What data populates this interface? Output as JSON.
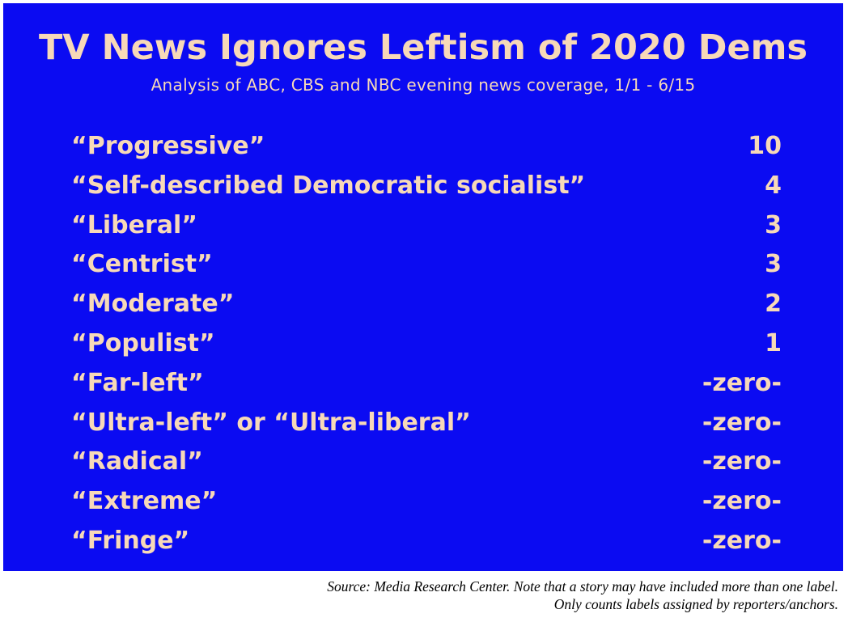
{
  "chart_data": {
    "type": "table",
    "title": "TV News Ignores Leftism of 2020 Dems",
    "subtitle": "Analysis of ABC, CBS and NBC evening news coverage, 1/1 - 6/15",
    "rows": [
      {
        "label": "“Progressive”",
        "value": "10"
      },
      {
        "label": "“Self-described Democratic socialist”",
        "value": "4"
      },
      {
        "label": "“Liberal”",
        "value": "3"
      },
      {
        "label": "“Centrist”",
        "value": "3"
      },
      {
        "label": "“Moderate”",
        "value": "2"
      },
      {
        "label": "“Populist”",
        "value": "1"
      },
      {
        "label": "“Far-left”",
        "value": "-zero-"
      },
      {
        "label": "“Ultra-left” or “Ultra-liberal”",
        "value": "-zero-"
      },
      {
        "label": "“Radical”",
        "value": "-zero-"
      },
      {
        "label": "“Extreme”",
        "value": "-zero-"
      },
      {
        "label": "“Fringe”",
        "value": "-zero-"
      }
    ]
  },
  "footer": {
    "source_line1": "Source: Media Research Center. Note that a story may have included more than one label.",
    "source_line2": "Only counts labels assigned by reporters/anchors."
  },
  "colors": {
    "background": "#0b0bf2",
    "text": "#f7d9b8"
  }
}
